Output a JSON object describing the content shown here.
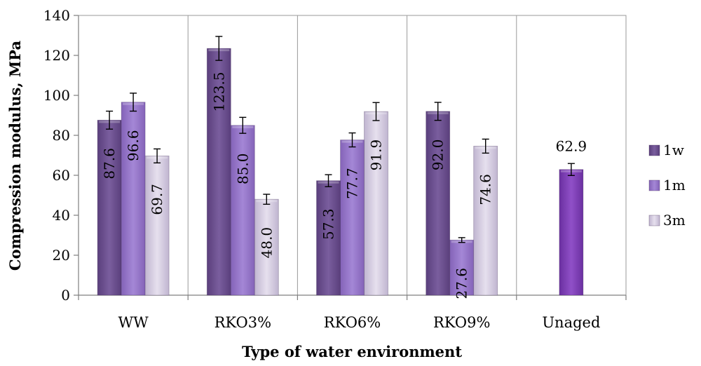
{
  "chart_data": {
    "type": "bar",
    "xlabel": "Type of water environment",
    "ylabel": "Compression modulus, MPa",
    "ylim": [
      0,
      140
    ],
    "yticks": [
      "0",
      "20",
      "40",
      "60",
      "80",
      "100",
      "120",
      "140"
    ],
    "categories": [
      "WW",
      "RKO3%",
      "RKO6%",
      "RKO9%",
      "Unaged"
    ],
    "grid": "vertical separators between categories",
    "legend_position": "right",
    "series": [
      {
        "name": "1w",
        "color": "#6b4f8e",
        "values": [
          87.6,
          123.5,
          57.3,
          92.0,
          null
        ],
        "errors": [
          4.5,
          6.0,
          3.0,
          4.5,
          null
        ],
        "labels": [
          "87.6",
          "123.5",
          "57.3",
          "92.0",
          null
        ]
      },
      {
        "name": "1m",
        "color": "#9575c8",
        "values": [
          96.6,
          85.0,
          77.7,
          27.6,
          62.9
        ],
        "errors": [
          4.5,
          4.0,
          3.5,
          1.2,
          3.0
        ],
        "labels": [
          "96.6",
          "85.0",
          "77.7",
          "27.6",
          "62.9"
        ]
      },
      {
        "name": "3m",
        "color": "#cdc3da",
        "values": [
          69.7,
          48.0,
          91.9,
          74.6,
          null
        ],
        "errors": [
          3.5,
          2.5,
          4.5,
          3.5,
          null
        ],
        "labels": [
          "69.7",
          "48.0",
          "91.9",
          "74.6",
          null
        ]
      }
    ],
    "unaged_color": "#7b3fb0"
  }
}
